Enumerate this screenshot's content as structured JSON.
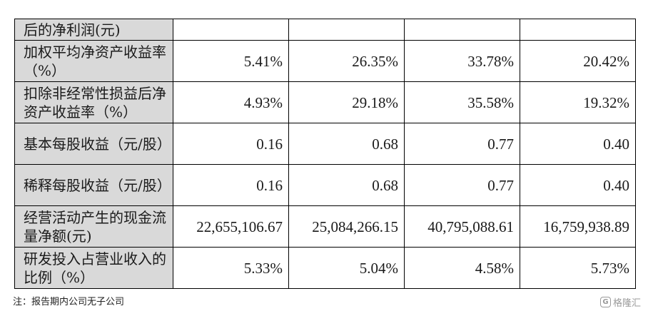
{
  "table": {
    "rows": [
      {
        "label": "后的净利润(元)",
        "values": [
          "",
          "",
          "",
          ""
        ]
      },
      {
        "label": "加权平均净资产收益率（%）",
        "values": [
          "5.41%",
          "26.35%",
          "33.78%",
          "20.42%"
        ]
      },
      {
        "label": "扣除非经常性损益后净资产收益率（%）",
        "values": [
          "4.93%",
          "29.18%",
          "35.58%",
          "19.32%"
        ]
      },
      {
        "label": "基本每股收益（元/股）",
        "values": [
          "0.16",
          "0.68",
          "0.77",
          "0.40"
        ]
      },
      {
        "label": "稀释每股收益（元/股）",
        "values": [
          "0.16",
          "0.68",
          "0.77",
          "0.40"
        ]
      },
      {
        "label": "经营活动产生的现金流量净额(元)",
        "values": [
          "22,655,106.67",
          "25,084,266.15",
          "40,795,088.61",
          "16,759,938.89"
        ]
      },
      {
        "label": "研发投入占营业收入的比例（%）",
        "values": [
          "5.33%",
          "5.04%",
          "4.58%",
          "5.73%"
        ]
      }
    ]
  },
  "note": "注：报告期内公司无子公司",
  "watermark": {
    "logo_letter": "G",
    "text": "格隆汇"
  }
}
